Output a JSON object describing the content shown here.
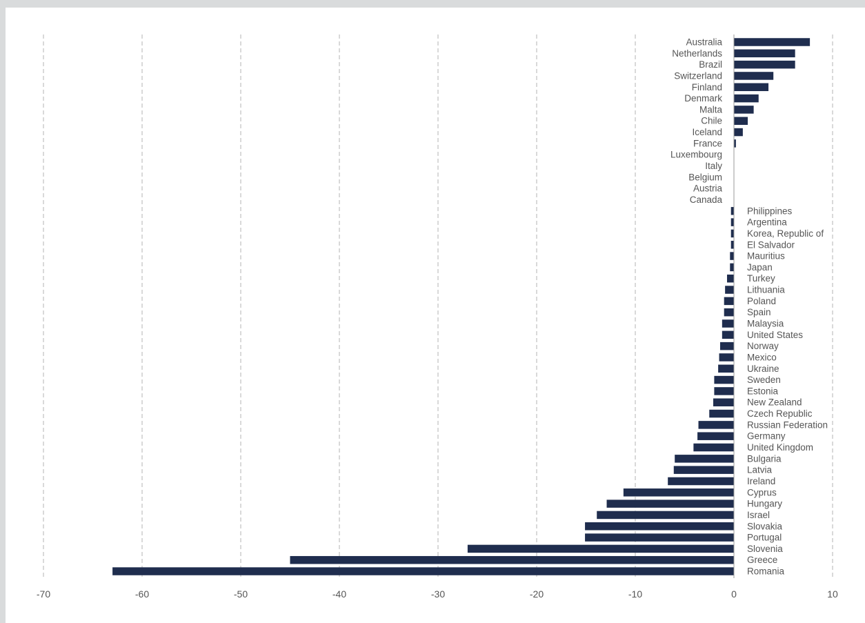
{
  "chart_data": {
    "type": "bar",
    "orientation": "horizontal",
    "title": "",
    "xlabel": "",
    "ylabel": "",
    "xlim": [
      -70,
      10
    ],
    "x_ticks": [
      -70,
      -60,
      -50,
      -40,
      -30,
      -20,
      -10,
      0,
      10
    ],
    "grid": "vertical dashed",
    "legend": "none",
    "bar_color": "#1f2d4e",
    "categories": [
      "Australia",
      "Netherlands",
      "Brazil",
      "Switzerland",
      "Finland",
      "Denmark",
      "Malta",
      "Chile",
      "Iceland",
      "France",
      "Luxembourg",
      "Italy",
      "Belgium",
      "Austria",
      "Canada",
      "Philippines",
      "Argentina",
      "Korea, Republic of",
      "El Salvador",
      "Mauritius",
      "Japan",
      "Turkey",
      "Lithuania",
      "Poland",
      "Spain",
      "Malaysia",
      "United States",
      "Norway",
      "Mexico",
      "Ukraine",
      "Sweden",
      "Estonia",
      "New Zealand",
      "Czech Republic",
      "Russian Federation",
      "Germany",
      "United Kingdom",
      "Bulgaria",
      "Latvia",
      "Ireland",
      "Cyprus",
      "Hungary",
      "Israel",
      "Slovakia",
      "Portugal",
      "Slovenia",
      "Greece",
      "Romania"
    ],
    "values": [
      7.7,
      6.2,
      6.2,
      4.0,
      3.5,
      2.5,
      2.0,
      1.4,
      0.9,
      0.2,
      0.0,
      0.0,
      0.0,
      0.0,
      0.0,
      -0.3,
      -0.3,
      -0.3,
      -0.3,
      -0.4,
      -0.4,
      -0.7,
      -0.9,
      -1.0,
      -1.0,
      -1.2,
      -1.2,
      -1.4,
      -1.5,
      -1.6,
      -2.0,
      -2.0,
      -2.1,
      -2.5,
      -3.6,
      -3.7,
      -4.1,
      -6.0,
      -6.1,
      -6.7,
      -11.2,
      -12.9,
      -13.9,
      -15.1,
      -15.1,
      -27.0,
      -45.0,
      -63.0
    ]
  }
}
